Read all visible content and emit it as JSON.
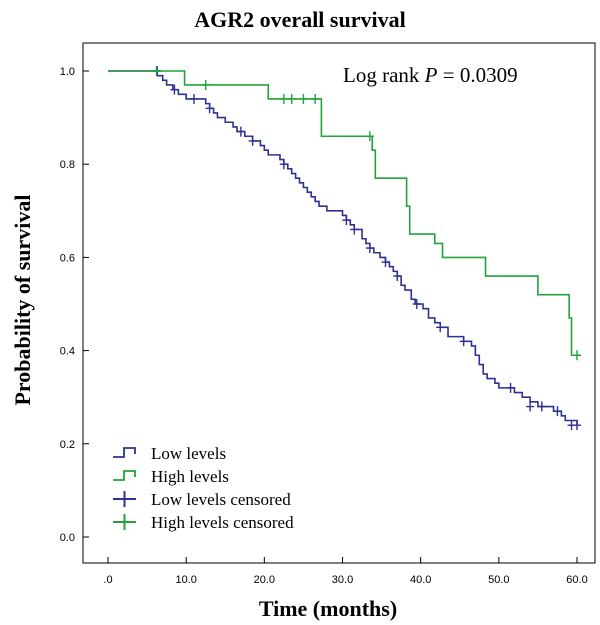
{
  "chart_data": {
    "type": "line",
    "title": "AGR2 overall survival",
    "xlabel": "Time (months)",
    "ylabel": "Probability of survival",
    "xlim": [
      0,
      60
    ],
    "ylim": [
      0,
      1.0
    ],
    "x_ticks": [
      ".0",
      "10.0",
      "20.0",
      "30.0",
      "40.0",
      "50.0",
      "60.0"
    ],
    "y_ticks": [
      "0.0",
      "0.2",
      "0.4",
      "0.6",
      "0.8",
      "1.0"
    ],
    "annotation": {
      "prefix": "Log rank ",
      "italic": "P",
      "suffix": " = 0.0309"
    },
    "legend_position": "bottom-left",
    "legend": [
      {
        "label": "Low levels",
        "color": "#2e3192",
        "kind": "step"
      },
      {
        "label": "High levels",
        "color": "#22a33a",
        "kind": "step"
      },
      {
        "label": "Low levels censored",
        "color": "#2e3192",
        "kind": "cross"
      },
      {
        "label": "High levels censored",
        "color": "#22a33a",
        "kind": "cross"
      }
    ],
    "series": [
      {
        "name": "Low levels",
        "color": "#2e3192",
        "steps": [
          [
            0,
            1.0
          ],
          [
            6.3,
            0.99
          ],
          [
            7,
            0.98
          ],
          [
            7.5,
            0.97
          ],
          [
            8.3,
            0.96
          ],
          [
            9,
            0.95
          ],
          [
            10,
            0.94
          ],
          [
            11,
            0.94
          ],
          [
            12.5,
            0.93
          ],
          [
            13,
            0.92
          ],
          [
            13.5,
            0.91
          ],
          [
            14,
            0.9
          ],
          [
            15,
            0.89
          ],
          [
            16,
            0.88
          ],
          [
            16.5,
            0.87
          ],
          [
            17.5,
            0.86
          ],
          [
            18.5,
            0.85
          ],
          [
            19.5,
            0.84
          ],
          [
            20,
            0.83
          ],
          [
            20.5,
            0.82
          ],
          [
            22,
            0.81
          ],
          [
            22.5,
            0.8
          ],
          [
            23,
            0.79
          ],
          [
            23.5,
            0.78
          ],
          [
            24,
            0.77
          ],
          [
            24.5,
            0.76
          ],
          [
            25,
            0.75
          ],
          [
            25.5,
            0.74
          ],
          [
            26,
            0.73
          ],
          [
            26.5,
            0.72
          ],
          [
            27,
            0.71
          ],
          [
            28,
            0.7
          ],
          [
            30,
            0.69
          ],
          [
            30.5,
            0.68
          ],
          [
            31,
            0.67
          ],
          [
            31.5,
            0.66
          ],
          [
            32.5,
            0.64
          ],
          [
            33,
            0.63
          ],
          [
            33.5,
            0.62
          ],
          [
            34,
            0.61
          ],
          [
            34.8,
            0.6
          ],
          [
            35.5,
            0.59
          ],
          [
            36,
            0.58
          ],
          [
            36.5,
            0.57
          ],
          [
            37,
            0.56
          ],
          [
            37.5,
            0.54
          ],
          [
            38,
            0.53
          ],
          [
            38.8,
            0.51
          ],
          [
            39.3,
            0.5
          ],
          [
            40.3,
            0.49
          ],
          [
            41,
            0.47
          ],
          [
            41.8,
            0.46
          ],
          [
            42.5,
            0.45
          ],
          [
            43.5,
            0.43
          ],
          [
            45.5,
            0.42
          ],
          [
            46.5,
            0.41
          ],
          [
            47,
            0.39
          ],
          [
            47.5,
            0.37
          ],
          [
            48,
            0.35
          ],
          [
            48.5,
            0.34
          ],
          [
            49.5,
            0.33
          ],
          [
            50,
            0.32
          ],
          [
            52,
            0.31
          ],
          [
            53,
            0.3
          ],
          [
            54,
            0.29
          ],
          [
            55,
            0.28
          ],
          [
            57,
            0.27
          ],
          [
            58,
            0.26
          ],
          [
            58.5,
            0.25
          ],
          [
            60,
            0.24
          ]
        ],
        "end_x": 60,
        "censored": [
          [
            6.3,
            1.0
          ],
          [
            8.5,
            0.96
          ],
          [
            11,
            0.94
          ],
          [
            13,
            0.92
          ],
          [
            17,
            0.87
          ],
          [
            18.5,
            0.85
          ],
          [
            22.5,
            0.8
          ],
          [
            30.5,
            0.68
          ],
          [
            31.5,
            0.66
          ],
          [
            33.5,
            0.62
          ],
          [
            35.5,
            0.59
          ],
          [
            37,
            0.56
          ],
          [
            39.5,
            0.5
          ],
          [
            42.5,
            0.45
          ],
          [
            45.5,
            0.42
          ],
          [
            51.5,
            0.32
          ],
          [
            54,
            0.28
          ],
          [
            55.5,
            0.28
          ],
          [
            57.5,
            0.27
          ],
          [
            59.3,
            0.24
          ],
          [
            60,
            0.24
          ]
        ]
      },
      {
        "name": "High levels",
        "color": "#22a33a",
        "steps": [
          [
            0,
            1.0
          ],
          [
            9.8,
            0.97
          ],
          [
            20.5,
            0.94
          ],
          [
            27.3,
            0.86
          ],
          [
            33.8,
            0.83
          ],
          [
            34.2,
            0.77
          ],
          [
            38.2,
            0.71
          ],
          [
            38.6,
            0.65
          ],
          [
            41.8,
            0.63
          ],
          [
            42.8,
            0.6
          ],
          [
            48.3,
            0.56
          ],
          [
            55,
            0.52
          ],
          [
            59,
            0.47
          ],
          [
            59.3,
            0.39
          ],
          [
            60,
            0.39
          ]
        ],
        "end_x": 60,
        "censored": [
          [
            6.2,
            1.0
          ],
          [
            12.5,
            0.97
          ],
          [
            22.5,
            0.94
          ],
          [
            23.5,
            0.94
          ],
          [
            25,
            0.94
          ],
          [
            26.5,
            0.94
          ],
          [
            33.5,
            0.86
          ],
          [
            60,
            0.39
          ]
        ]
      }
    ]
  }
}
